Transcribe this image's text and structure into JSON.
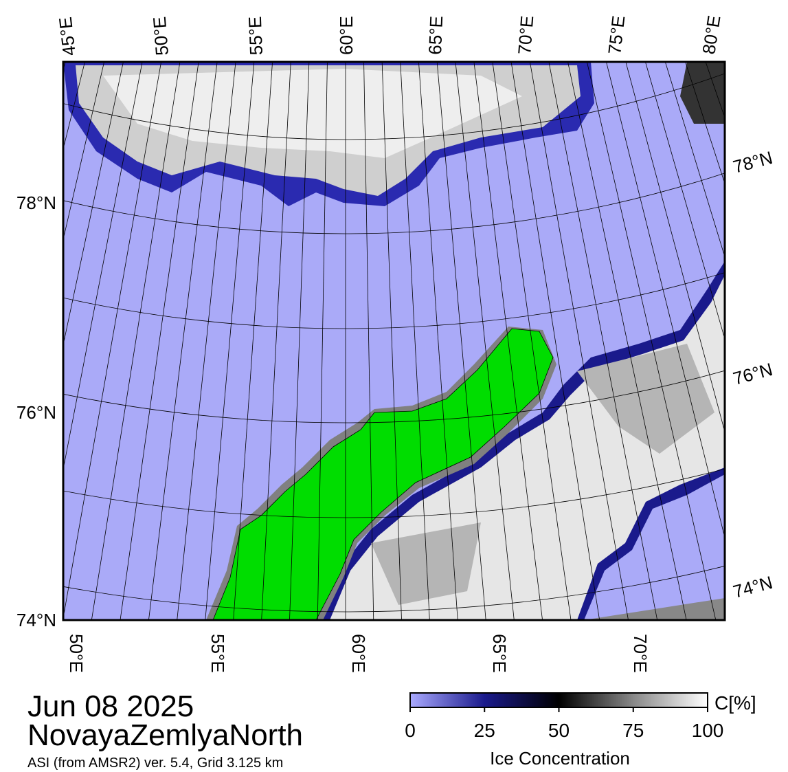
{
  "map": {
    "title": "Jun 08 2025",
    "region": "NovayaZemlyaNorth",
    "source": "ASI (from AMSR2) ver. 5.4,  Grid 3.125 km",
    "top_lon_labels": [
      "45°E",
      "50°E",
      "55°E",
      "60°E",
      "65°E",
      "70°E",
      "75°E",
      "80°E"
    ],
    "bottom_lon_labels": [
      "50°E",
      "55°E",
      "60°E",
      "65°E",
      "70°E"
    ],
    "left_lat_labels": [
      "78°N",
      "76°N",
      "74°N"
    ],
    "right_lat_labels": [
      "78°N",
      "76°N",
      "74°N"
    ]
  },
  "colorbar": {
    "lim": [
      0,
      100
    ],
    "ticks": [
      0,
      25,
      50,
      75,
      100
    ],
    "unit": "C[%]",
    "label": "Ice Concentration"
  }
}
